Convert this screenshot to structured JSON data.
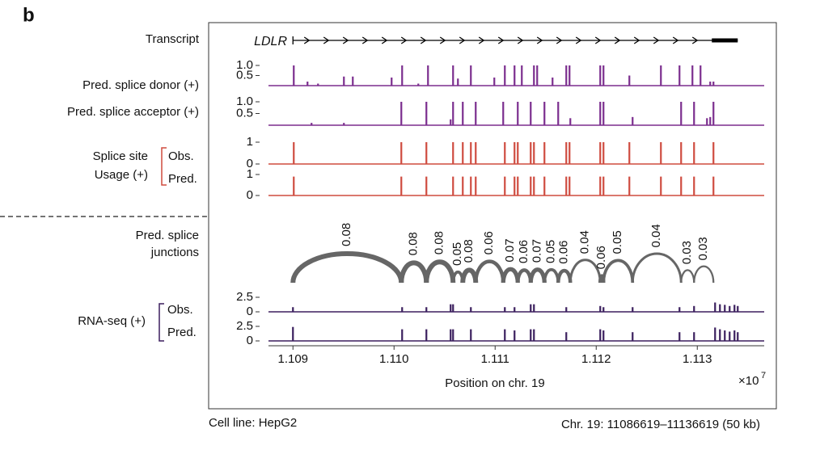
{
  "panel_label": "b",
  "chart_data": {
    "type": "tracks",
    "x_label": "Position on chr. 19",
    "x_offset": {
      "base": "×10",
      "exponent": "7"
    },
    "xlim": [
      1.1086619,
      1.1136619
    ],
    "xticks": [
      1.109,
      {
        "value": 1.11,
        "label": "1.110"
      },
      1.111,
      1.112,
      1.113
    ],
    "transcript": {
      "name": "Transcript",
      "label": "LDLR",
      "start": 1.109,
      "end": 1.1134,
      "utr_start": 1.113144
    },
    "tracks": [
      {
        "type": "spikes",
        "name": "Pred. splice donor (+)",
        "color": "#7b2d8e",
        "ylim": [
          0,
          1.1
        ],
        "yticks": [
          {
            "value": 1,
            "label": "1.0"
          },
          0.5
        ],
        "x": [
          1.109008,
          1.109144,
          1.109248,
          1.109504,
          1.109592,
          1.109976,
          1.11008,
          1.11024,
          1.110336,
          1.110584,
          1.110632,
          1.11076,
          1.110992,
          1.111096,
          1.111192,
          1.111264,
          1.111384,
          1.111416,
          1.111568,
          1.111704,
          1.111736,
          1.11204,
          1.112072,
          1.112328,
          1.11264,
          1.112824,
          1.112952,
          1.113032,
          1.113128,
          1.11316
        ],
        "values": [
          1,
          0.2,
          0.1,
          0.45,
          0.45,
          0.4,
          1,
          0.1,
          1,
          1,
          0.35,
          1,
          0.4,
          1,
          1,
          1,
          1,
          1,
          0.4,
          1,
          1,
          1,
          1,
          0.5,
          1,
          1,
          1,
          1,
          0.2,
          0.2
        ]
      },
      {
        "type": "spikes",
        "name": "Pred. splice acceptor (+)",
        "color": "#7b2d8e",
        "ylim": [
          0,
          1.1
        ],
        "yticks": [
          {
            "value": 1,
            "label": "1.0"
          },
          0.5
        ],
        "x": [
          1.109184,
          1.109504,
          1.110072,
          1.11032,
          1.11056,
          1.110584,
          1.11068,
          1.110808,
          1.11108,
          1.111224,
          1.111352,
          1.111488,
          1.111624,
          1.111744,
          1.11204,
          1.112072,
          1.11236,
          1.11284,
          1.112968,
          1.113096,
          1.113128,
          1.11316
        ],
        "values": [
          0.1,
          0.1,
          1,
          1,
          0.25,
          1,
          1,
          1,
          1,
          1,
          1,
          1,
          1,
          0.3,
          1,
          1,
          0.35,
          1,
          1,
          0.3,
          0.35,
          1
        ]
      },
      {
        "type": "spikes",
        "name": "Obs.",
        "color": "#cf4b3f",
        "ylim": [
          0,
          1
        ],
        "yticks": [
          1,
          0
        ],
        "x": [
          1.109008,
          1.110072,
          1.11032,
          1.110584,
          1.11068,
          1.11076,
          1.110808,
          1.111096,
          1.111192,
          1.111224,
          1.111352,
          1.111384,
          1.111488,
          1.111704,
          1.111736,
          1.11204,
          1.112072,
          1.112328,
          1.11264,
          1.11284,
          1.112968,
          1.11316
        ],
        "values": [
          1,
          1,
          1,
          1,
          1,
          1,
          1,
          1,
          1,
          1,
          1,
          1,
          1,
          1,
          1,
          1,
          1,
          1,
          1,
          1,
          1,
          1
        ]
      },
      {
        "type": "spikes",
        "name": "Pred.",
        "color": "#cf4b3f",
        "ylim": [
          0,
          1
        ],
        "yticks": [
          1,
          0
        ],
        "x": [
          1.109008,
          1.110072,
          1.11032,
          1.110584,
          1.11068,
          1.11076,
          1.110808,
          1.111096,
          1.111192,
          1.111224,
          1.111352,
          1.111384,
          1.111488,
          1.111704,
          1.111736,
          1.11204,
          1.112072,
          1.112328,
          1.11264,
          1.11284,
          1.112968,
          1.11316
        ],
        "values": [
          0.9,
          0.9,
          0.9,
          0.9,
          0.9,
          0.9,
          0.9,
          0.9,
          0.9,
          0.9,
          0.9,
          0.9,
          0.9,
          0.9,
          0.9,
          0.9,
          0.9,
          0.9,
          0.9,
          0.9,
          0.9,
          0.9
        ]
      },
      {
        "type": "spikes",
        "name": "Obs.",
        "color": "#3b1f5e",
        "ylim": [
          0,
          3
        ],
        "yticks": [
          2.5,
          0
        ],
        "x": [
          1.109,
          1.11008,
          1.11032,
          1.11056,
          1.110584,
          1.11076,
          1.111096,
          1.111192,
          1.111352,
          1.111384,
          1.111704,
          1.11204,
          1.112072,
          1.11236,
          1.112824,
          1.112968,
          1.113176,
          1.113224,
          1.113272,
          1.11332,
          1.113368,
          1.1134
        ],
        "values": [
          0.8,
          0.8,
          0.8,
          1.3,
          1.3,
          0.8,
          0.8,
          0.8,
          1.3,
          1.3,
          0.8,
          1,
          0.8,
          0.8,
          0.8,
          1,
          1.6,
          1.3,
          1.2,
          1,
          1.2,
          1
        ]
      },
      {
        "type": "spikes",
        "name": "Pred.",
        "color": "#3b1f5e",
        "ylim": [
          0,
          3
        ],
        "yticks": [
          2.5,
          0
        ],
        "x": [
          1.109,
          1.11008,
          1.11032,
          1.11056,
          1.110584,
          1.11076,
          1.111096,
          1.111192,
          1.111352,
          1.111384,
          1.111704,
          1.11204,
          1.112072,
          1.11236,
          1.112824,
          1.112968,
          1.113176,
          1.113224,
          1.113272,
          1.11332,
          1.113368,
          1.1134
        ],
        "values": [
          2.4,
          2,
          2,
          2,
          2,
          2,
          2,
          1.8,
          2,
          2,
          1.5,
          2,
          1.8,
          1.5,
          1.5,
          1.5,
          2.3,
          2,
          1.8,
          1.6,
          1.8,
          1.5
        ]
      }
    ],
    "groups": [
      {
        "label": [
          "Splice site",
          "Usage (+)"
        ]
      },
      {
        "label": [
          "RNA-seq (+)"
        ]
      }
    ],
    "junctions": {
      "type": "arcs",
      "label": [
        "Pred. splice",
        "junctions"
      ],
      "color": "#666666",
      "start": [
        1.109,
        1.110072,
        1.11032,
        1.110584,
        1.11068,
        1.110808,
        1.11108,
        1.111224,
        1.111352,
        1.111488,
        1.111624,
        1.111744,
        1.11204,
        1.112072,
        1.11236,
        1.11284,
        1.112968
      ],
      "end": [
        1.110072,
        1.11032,
        1.110584,
        1.11068,
        1.110808,
        1.11108,
        1.111224,
        1.111352,
        1.111488,
        1.111624,
        1.111744,
        1.11204,
        1.112072,
        1.11236,
        1.11284,
        1.112968,
        1.11316
      ],
      "values": [
        0.08,
        0.08,
        0.08,
        0.05,
        0.08,
        0.06,
        0.07,
        0.06,
        0.07,
        0.05,
        0.06,
        0.04,
        0.06,
        0.05,
        0.04,
        0.03,
        0.03
      ]
    }
  },
  "footer": {
    "left": "Cell line: HepG2",
    "right": "Chr. 19: 11086619–11136619 (50 kb)"
  }
}
